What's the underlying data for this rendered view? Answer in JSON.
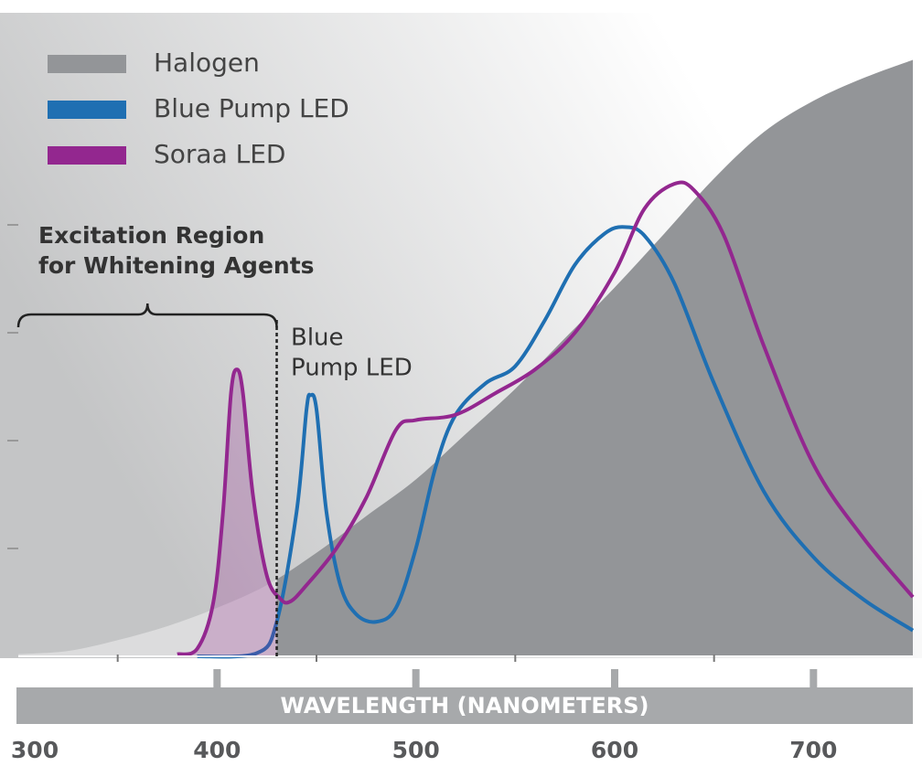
{
  "chart_data": {
    "type": "line",
    "xlim": [
      300,
      750
    ],
    "xticks": [
      300,
      400,
      500,
      600,
      700
    ],
    "ylim": [
      0,
      6
    ],
    "yticks": [
      1,
      2,
      3,
      4
    ],
    "x_label": "WAVELENGTH (NANOMETERS)",
    "legend": "top-left",
    "annotations": {
      "excitation_text": [
        "Excitation Region",
        "for Whitening Agents"
      ],
      "excitation_limit": 430,
      "peak_text": [
        "Blue",
        "Pump LED"
      ]
    },
    "series": [
      {
        "name": "Halogen",
        "color": "#939598",
        "fill": true,
        "x": [
          300,
          325,
          350,
          375,
          400,
          425,
          450,
          475,
          500,
          525,
          550,
          575,
          600,
          625,
          650,
          675,
          700,
          725,
          750
        ],
        "values": [
          0.02,
          0.05,
          0.15,
          0.28,
          0.45,
          0.66,
          0.96,
          1.3,
          1.64,
          2.06,
          2.48,
          2.95,
          3.42,
          3.92,
          4.43,
          4.86,
          5.15,
          5.36,
          5.53
        ]
      },
      {
        "name": "Blue Pump LED",
        "color": "#1f6fb2",
        "x": [
          390,
          420,
          430,
          440,
          445,
          447,
          450,
          455,
          462,
          470,
          480,
          490,
          500,
          510,
          520,
          535,
          550,
          565,
          580,
          595,
          605,
          615,
          630,
          650,
          675,
          700,
          725,
          750
        ],
        "values": [
          0,
          0.03,
          0.32,
          1.34,
          2.29,
          2.42,
          2.29,
          1.34,
          0.66,
          0.39,
          0.32,
          0.45,
          1.0,
          1.76,
          2.24,
          2.53,
          2.69,
          3.12,
          3.63,
          3.92,
          3.98,
          3.9,
          3.46,
          2.53,
          1.53,
          0.92,
          0.53,
          0.24
        ]
      },
      {
        "name": "Soraa LED",
        "color": "#93278f",
        "x": [
          380,
          390,
          398,
          403,
          407,
          410,
          413,
          418,
          425,
          432,
          437,
          445,
          460,
          475,
          490,
          500,
          520,
          540,
          560,
          580,
          600,
          615,
          630,
          640,
          655,
          675,
          700,
          725,
          750
        ],
        "values": [
          0.02,
          0.07,
          0.49,
          1.34,
          2.44,
          2.66,
          2.44,
          1.5,
          0.75,
          0.53,
          0.51,
          0.66,
          1.0,
          1.47,
          2.1,
          2.19,
          2.24,
          2.44,
          2.66,
          3.0,
          3.56,
          4.15,
          4.38,
          4.32,
          3.9,
          2.88,
          1.78,
          1.1,
          0.55
        ]
      }
    ]
  }
}
